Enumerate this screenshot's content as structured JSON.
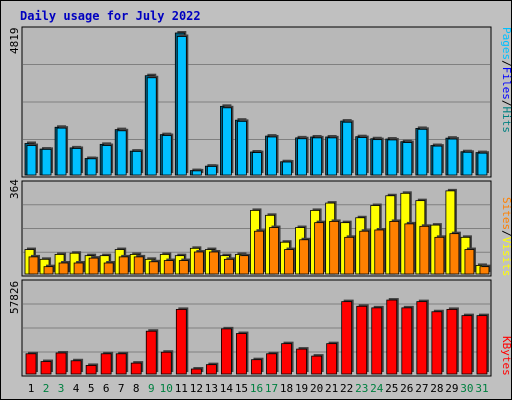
{
  "title": "Daily usage for July 2022",
  "colors": {
    "page_bg": "#c0c0c0",
    "panel_bg": "#b8b8b8",
    "gridline": "#808080",
    "hits": "#00c0ff",
    "files": "#0000ff",
    "sites": "#ff8000",
    "visits": "#ffff00",
    "kbytes": "#ff0000",
    "title": "#0000c0",
    "weekday_label": "#000000",
    "weekend_label": "#008040"
  },
  "right_labels": {
    "top": [
      {
        "text": "Hits",
        "color": "#008080"
      },
      {
        "text": "/",
        "color": "#000000"
      },
      {
        "text": "Files",
        "color": "#0000ff"
      },
      {
        "text": "/",
        "color": "#000000"
      },
      {
        "text": "Pages",
        "color": "#00c0ff"
      }
    ],
    "middle": [
      {
        "text": "Visits",
        "color": "#ffff00"
      },
      {
        "text": "/",
        "color": "#000000"
      },
      {
        "text": "Sites",
        "color": "#ff8000"
      }
    ],
    "bottom": [
      {
        "text": "KBytes",
        "color": "#ff0000"
      }
    ]
  },
  "chart_data": {
    "type": "bar",
    "title": "Daily usage for July 2022",
    "categories": [
      "1",
      "2",
      "3",
      "4",
      "5",
      "6",
      "7",
      "8",
      "9",
      "10",
      "11",
      "12",
      "13",
      "14",
      "15",
      "16",
      "17",
      "18",
      "19",
      "20",
      "21",
      "22",
      "23",
      "24",
      "25",
      "26",
      "27",
      "28",
      "29",
      "30",
      "31"
    ],
    "weekend_days": [
      "2",
      "3",
      "9",
      "10",
      "16",
      "17",
      "23",
      "24",
      "30",
      "31"
    ],
    "panels": [
      {
        "name": "hits-files-pages",
        "ymax_label": "4819",
        "ymax": 4819,
        "series": [
          {
            "name": "Hits",
            "values": [
              1070,
              880,
              1620,
              920,
              560,
              1040,
              1540,
              810,
              3370,
              1370,
              4819,
              150,
              300,
              2330,
              1860,
              780,
              1320,
              450,
              1260,
              1290,
              1290,
              1830,
              1300,
              1230,
              1220,
              1130,
              1580,
              1000,
              1250,
              790,
              760
            ]
          },
          {
            "name": "Files",
            "values": [
              1000,
              870,
              1590,
              900,
              550,
              1000,
              1500,
              800,
              3300,
              1340,
              4700,
              140,
              290,
              2280,
              1820,
              760,
              1290,
              440,
              1230,
              1260,
              1260,
              1790,
              1270,
              1200,
              1190,
              1100,
              1550,
              980,
              1220,
              770,
              740
            ]
          },
          {
            "name": "Pages",
            "values": [
              0,
              0,
              0,
              0,
              0,
              0,
              0,
              0,
              0,
              0,
              0,
              0,
              0,
              0,
              0,
              0,
              0,
              0,
              0,
              0,
              0,
              0,
              0,
              0,
              0,
              0,
              0,
              0,
              0,
              0,
              0
            ]
          }
        ]
      },
      {
        "name": "visits-sites",
        "ymax_label": "364",
        "ymax": 364,
        "series": [
          {
            "name": "Visits",
            "values": [
              100,
              60,
              80,
              85,
              75,
              75,
              100,
              80,
              60,
              80,
              75,
              105,
              100,
              75,
              80,
              260,
              240,
              130,
              190,
              260,
              290,
              210,
              230,
              280,
              320,
              330,
              300,
              200,
              340,
              150,
              35
            ]
          },
          {
            "name": "Sites",
            "values": [
              70,
              30,
              45,
              45,
              65,
              45,
              70,
              70,
              50,
              55,
              55,
              90,
              90,
              60,
              75,
              175,
              190,
              100,
              140,
              210,
              215,
              150,
              175,
              180,
              215,
              205,
              195,
              150,
              165,
              100,
              30
            ]
          }
        ]
      },
      {
        "name": "kbytes",
        "ymax_label": "57826",
        "ymax": 57826,
        "series": [
          {
            "name": "KBytes",
            "values": [
              13000,
              8000,
              13500,
              8500,
              5500,
              13000,
              13000,
              7000,
              27500,
              14000,
              41500,
              3200,
              6000,
              29000,
              26000,
              9200,
              13000,
              19500,
              16000,
              11500,
              19500,
              46500,
              43500,
              42500,
              47500,
              42500,
              46500,
              40000,
              41500,
              37500,
              37500
            ]
          }
        ]
      }
    ]
  }
}
